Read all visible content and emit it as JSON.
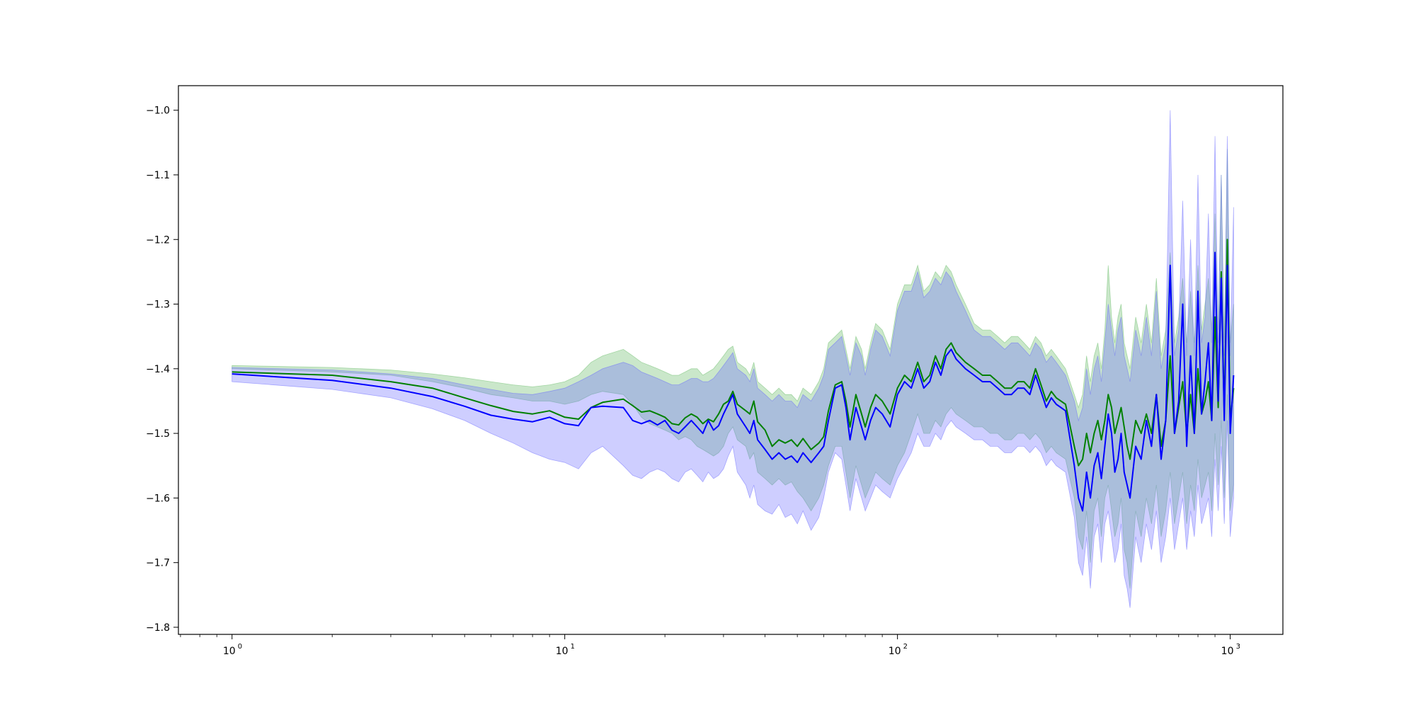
{
  "chart_data": {
    "type": "line",
    "title": "",
    "xlabel": "",
    "ylabel": "",
    "xscale": "log",
    "xlim": [
      0.69,
      1440
    ],
    "ylim": [
      -1.811,
      -0.962
    ],
    "grid": false,
    "x_ticks": [
      {
        "value": 1,
        "base": "10",
        "exp": "0"
      },
      {
        "value": 10,
        "base": "10",
        "exp": "1"
      },
      {
        "value": 100,
        "base": "10",
        "exp": "2"
      },
      {
        "value": 1000,
        "base": "10",
        "exp": "3"
      }
    ],
    "y_ticks": [
      {
        "value": -1.0,
        "label": "−1.0"
      },
      {
        "value": -1.1,
        "label": "−1.1"
      },
      {
        "value": -1.2,
        "label": "−1.2"
      },
      {
        "value": -1.3,
        "label": "−1.3"
      },
      {
        "value": -1.4,
        "label": "−1.4"
      },
      {
        "value": -1.5,
        "label": "−1.5"
      },
      {
        "value": -1.6,
        "label": "−1.6"
      },
      {
        "value": -1.7,
        "label": "−1.7"
      },
      {
        "value": -1.8,
        "label": "−1.8"
      }
    ],
    "series": [
      {
        "color": "#008000",
        "band_color": "#66bb66",
        "band_opacity": 0.35,
        "x": [
          1,
          2,
          3,
          4,
          5,
          6,
          7,
          8,
          9,
          10,
          11,
          12,
          13,
          15,
          16,
          17,
          18,
          19,
          20,
          21,
          22,
          23,
          24,
          25,
          26,
          27,
          28,
          29,
          30,
          31,
          32,
          33,
          35,
          36,
          37,
          38,
          40,
          42,
          44,
          46,
          48,
          50,
          52,
          55,
          58,
          60,
          62,
          65,
          68,
          70,
          72,
          75,
          78,
          80,
          83,
          86,
          90,
          95,
          100,
          105,
          110,
          115,
          120,
          125,
          130,
          135,
          140,
          145,
          150,
          160,
          170,
          180,
          190,
          200,
          210,
          220,
          230,
          240,
          250,
          260,
          270,
          280,
          290,
          300,
          320,
          340,
          350,
          360,
          370,
          380,
          390,
          400,
          410,
          420,
          430,
          440,
          450,
          460,
          470,
          480,
          490,
          500,
          520,
          540,
          560,
          580,
          600,
          620,
          640,
          660,
          680,
          700,
          720,
          740,
          760,
          780,
          800,
          820,
          840,
          860,
          880,
          900,
          920,
          940,
          960,
          980,
          1000,
          1024
        ],
        "y": [
          -1.405,
          -1.41,
          -1.42,
          -1.43,
          -1.445,
          -1.457,
          -1.466,
          -1.47,
          -1.465,
          -1.475,
          -1.478,
          -1.46,
          -1.452,
          -1.447,
          -1.457,
          -1.467,
          -1.465,
          -1.47,
          -1.475,
          -1.485,
          -1.487,
          -1.476,
          -1.47,
          -1.475,
          -1.485,
          -1.478,
          -1.482,
          -1.47,
          -1.455,
          -1.45,
          -1.435,
          -1.455,
          -1.465,
          -1.47,
          -1.45,
          -1.482,
          -1.495,
          -1.52,
          -1.51,
          -1.515,
          -1.51,
          -1.52,
          -1.508,
          -1.525,
          -1.515,
          -1.505,
          -1.465,
          -1.425,
          -1.42,
          -1.45,
          -1.49,
          -1.44,
          -1.47,
          -1.49,
          -1.46,
          -1.44,
          -1.45,
          -1.47,
          -1.43,
          -1.41,
          -1.42,
          -1.39,
          -1.42,
          -1.41,
          -1.38,
          -1.4,
          -1.37,
          -1.36,
          -1.375,
          -1.39,
          -1.4,
          -1.41,
          -1.41,
          -1.42,
          -1.43,
          -1.43,
          -1.42,
          -1.42,
          -1.43,
          -1.4,
          -1.425,
          -1.45,
          -1.435,
          -1.445,
          -1.455,
          -1.52,
          -1.55,
          -1.54,
          -1.5,
          -1.53,
          -1.5,
          -1.48,
          -1.51,
          -1.48,
          -1.44,
          -1.46,
          -1.5,
          -1.48,
          -1.46,
          -1.49,
          -1.52,
          -1.54,
          -1.48,
          -1.5,
          -1.47,
          -1.5,
          -1.44,
          -1.52,
          -1.48,
          -1.38,
          -1.5,
          -1.46,
          -1.42,
          -1.5,
          -1.44,
          -1.5,
          -1.4,
          -1.47,
          -1.45,
          -1.42,
          -1.48,
          -1.32,
          -1.46,
          -1.25,
          -1.47,
          -1.2,
          -1.48,
          -1.43
        ],
        "lower": [
          -1.4,
          -1.405,
          -1.41,
          -1.42,
          -1.43,
          -1.44,
          -1.445,
          -1.45,
          -1.45,
          -1.455,
          -1.45,
          -1.44,
          -1.435,
          -1.44,
          -1.455,
          -1.475,
          -1.485,
          -1.49,
          -1.495,
          -1.5,
          -1.51,
          -1.505,
          -1.51,
          -1.52,
          -1.525,
          -1.53,
          -1.535,
          -1.53,
          -1.52,
          -1.5,
          -1.49,
          -1.51,
          -1.52,
          -1.54,
          -1.53,
          -1.56,
          -1.57,
          -1.58,
          -1.57,
          -1.58,
          -1.575,
          -1.59,
          -1.6,
          -1.62,
          -1.6,
          -1.58,
          -1.55,
          -1.52,
          -1.52,
          -1.56,
          -1.6,
          -1.55,
          -1.58,
          -1.6,
          -1.58,
          -1.56,
          -1.57,
          -1.58,
          -1.55,
          -1.53,
          -1.5,
          -1.47,
          -1.5,
          -1.5,
          -1.48,
          -1.49,
          -1.47,
          -1.46,
          -1.47,
          -1.48,
          -1.49,
          -1.49,
          -1.5,
          -1.5,
          -1.51,
          -1.51,
          -1.5,
          -1.5,
          -1.51,
          -1.5,
          -1.51,
          -1.53,
          -1.52,
          -1.53,
          -1.54,
          -1.6,
          -1.66,
          -1.68,
          -1.62,
          -1.7,
          -1.62,
          -1.6,
          -1.66,
          -1.6,
          -1.58,
          -1.62,
          -1.66,
          -1.64,
          -1.6,
          -1.68,
          -1.7,
          -1.74,
          -1.62,
          -1.66,
          -1.6,
          -1.64,
          -1.58,
          -1.66,
          -1.62,
          -1.56,
          -1.64,
          -1.6,
          -1.56,
          -1.64,
          -1.58,
          -1.62,
          -1.54,
          -1.6,
          -1.58,
          -1.56,
          -1.62,
          -1.5,
          -1.58,
          -1.48,
          -1.6,
          -1.44,
          -1.62,
          -1.58
        ],
        "upper": [
          -1.395,
          -1.398,
          -1.402,
          -1.408,
          -1.414,
          -1.42,
          -1.425,
          -1.428,
          -1.425,
          -1.42,
          -1.41,
          -1.39,
          -1.38,
          -1.37,
          -1.38,
          -1.39,
          -1.395,
          -1.4,
          -1.405,
          -1.41,
          -1.41,
          -1.405,
          -1.4,
          -1.4,
          -1.41,
          -1.405,
          -1.4,
          -1.39,
          -1.38,
          -1.37,
          -1.365,
          -1.39,
          -1.4,
          -1.41,
          -1.39,
          -1.42,
          -1.43,
          -1.44,
          -1.43,
          -1.44,
          -1.44,
          -1.45,
          -1.43,
          -1.44,
          -1.42,
          -1.4,
          -1.36,
          -1.35,
          -1.34,
          -1.37,
          -1.4,
          -1.35,
          -1.37,
          -1.4,
          -1.36,
          -1.33,
          -1.34,
          -1.37,
          -1.3,
          -1.27,
          -1.27,
          -1.24,
          -1.28,
          -1.27,
          -1.25,
          -1.26,
          -1.24,
          -1.25,
          -1.27,
          -1.3,
          -1.33,
          -1.34,
          -1.34,
          -1.35,
          -1.36,
          -1.35,
          -1.35,
          -1.36,
          -1.37,
          -1.35,
          -1.36,
          -1.38,
          -1.37,
          -1.38,
          -1.4,
          -1.44,
          -1.46,
          -1.44,
          -1.38,
          -1.42,
          -1.38,
          -1.36,
          -1.4,
          -1.34,
          -1.24,
          -1.32,
          -1.36,
          -1.32,
          -1.3,
          -1.36,
          -1.38,
          -1.4,
          -1.32,
          -1.36,
          -1.3,
          -1.36,
          -1.26,
          -1.38,
          -1.34,
          -1.22,
          -1.36,
          -1.32,
          -1.26,
          -1.36,
          -1.28,
          -1.36,
          -1.24,
          -1.34,
          -1.3,
          -1.26,
          -1.34,
          -1.16,
          -1.34,
          -1.1,
          -1.36,
          -1.06,
          -1.36,
          -1.3
        ]
      },
      {
        "color": "#0000ff",
        "band_color": "#6666ff",
        "band_opacity": 0.32,
        "x": [
          1,
          2,
          3,
          4,
          5,
          6,
          7,
          8,
          9,
          10,
          11,
          12,
          13,
          15,
          16,
          17,
          18,
          19,
          20,
          21,
          22,
          23,
          24,
          25,
          26,
          27,
          28,
          29,
          30,
          31,
          32,
          33,
          35,
          36,
          37,
          38,
          40,
          42,
          44,
          46,
          48,
          50,
          52,
          55,
          58,
          60,
          62,
          65,
          68,
          70,
          72,
          75,
          78,
          80,
          83,
          86,
          90,
          95,
          100,
          105,
          110,
          115,
          120,
          125,
          130,
          135,
          140,
          145,
          150,
          160,
          170,
          180,
          190,
          200,
          210,
          220,
          230,
          240,
          250,
          260,
          270,
          280,
          290,
          300,
          320,
          340,
          350,
          360,
          370,
          380,
          390,
          400,
          410,
          420,
          430,
          440,
          450,
          460,
          470,
          480,
          490,
          500,
          520,
          540,
          560,
          580,
          600,
          620,
          640,
          660,
          680,
          700,
          720,
          740,
          760,
          780,
          800,
          820,
          840,
          860,
          880,
          900,
          920,
          940,
          960,
          980,
          1000,
          1024
        ],
        "y": [
          -1.408,
          -1.418,
          -1.43,
          -1.443,
          -1.458,
          -1.472,
          -1.478,
          -1.482,
          -1.475,
          -1.485,
          -1.488,
          -1.46,
          -1.458,
          -1.46,
          -1.48,
          -1.485,
          -1.48,
          -1.487,
          -1.48,
          -1.495,
          -1.5,
          -1.49,
          -1.48,
          -1.49,
          -1.5,
          -1.48,
          -1.495,
          -1.488,
          -1.47,
          -1.455,
          -1.44,
          -1.47,
          -1.49,
          -1.5,
          -1.48,
          -1.51,
          -1.525,
          -1.54,
          -1.53,
          -1.54,
          -1.535,
          -1.545,
          -1.53,
          -1.545,
          -1.53,
          -1.52,
          -1.48,
          -1.43,
          -1.425,
          -1.46,
          -1.51,
          -1.46,
          -1.49,
          -1.51,
          -1.48,
          -1.46,
          -1.47,
          -1.49,
          -1.44,
          -1.42,
          -1.43,
          -1.4,
          -1.43,
          -1.42,
          -1.39,
          -1.41,
          -1.38,
          -1.37,
          -1.385,
          -1.4,
          -1.41,
          -1.42,
          -1.42,
          -1.43,
          -1.44,
          -1.44,
          -1.43,
          -1.43,
          -1.44,
          -1.41,
          -1.435,
          -1.46,
          -1.445,
          -1.455,
          -1.465,
          -1.55,
          -1.6,
          -1.62,
          -1.56,
          -1.6,
          -1.55,
          -1.53,
          -1.57,
          -1.52,
          -1.47,
          -1.5,
          -1.56,
          -1.54,
          -1.5,
          -1.56,
          -1.58,
          -1.6,
          -1.52,
          -1.54,
          -1.48,
          -1.52,
          -1.44,
          -1.54,
          -1.48,
          -1.24,
          -1.5,
          -1.45,
          -1.3,
          -1.52,
          -1.38,
          -1.5,
          -1.28,
          -1.47,
          -1.42,
          -1.36,
          -1.48,
          -1.22,
          -1.45,
          -1.26,
          -1.48,
          -1.24,
          -1.5,
          -1.41
        ],
        "lower": [
          -1.42,
          -1.432,
          -1.445,
          -1.462,
          -1.48,
          -1.5,
          -1.515,
          -1.53,
          -1.54,
          -1.545,
          -1.555,
          -1.53,
          -1.52,
          -1.55,
          -1.565,
          -1.57,
          -1.56,
          -1.555,
          -1.56,
          -1.57,
          -1.575,
          -1.56,
          -1.555,
          -1.565,
          -1.575,
          -1.56,
          -1.57,
          -1.565,
          -1.555,
          -1.535,
          -1.52,
          -1.56,
          -1.58,
          -1.6,
          -1.58,
          -1.61,
          -1.62,
          -1.625,
          -1.61,
          -1.63,
          -1.625,
          -1.64,
          -1.62,
          -1.65,
          -1.63,
          -1.6,
          -1.56,
          -1.53,
          -1.54,
          -1.58,
          -1.62,
          -1.57,
          -1.6,
          -1.62,
          -1.6,
          -1.58,
          -1.59,
          -1.6,
          -1.57,
          -1.55,
          -1.53,
          -1.5,
          -1.52,
          -1.52,
          -1.5,
          -1.51,
          -1.49,
          -1.48,
          -1.49,
          -1.5,
          -1.51,
          -1.51,
          -1.52,
          -1.52,
          -1.53,
          -1.53,
          -1.52,
          -1.52,
          -1.53,
          -1.52,
          -1.53,
          -1.55,
          -1.54,
          -1.55,
          -1.56,
          -1.63,
          -1.7,
          -1.72,
          -1.66,
          -1.74,
          -1.66,
          -1.64,
          -1.7,
          -1.64,
          -1.62,
          -1.66,
          -1.7,
          -1.68,
          -1.64,
          -1.72,
          -1.74,
          -1.77,
          -1.66,
          -1.7,
          -1.64,
          -1.68,
          -1.62,
          -1.7,
          -1.66,
          -1.6,
          -1.68,
          -1.64,
          -1.6,
          -1.68,
          -1.62,
          -1.66,
          -1.58,
          -1.64,
          -1.62,
          -1.6,
          -1.66,
          -1.54,
          -1.62,
          -1.52,
          -1.64,
          -1.48,
          -1.66,
          -1.6
        ],
        "upper": [
          -1.398,
          -1.402,
          -1.408,
          -1.415,
          -1.425,
          -1.432,
          -1.438,
          -1.44,
          -1.435,
          -1.43,
          -1.42,
          -1.41,
          -1.4,
          -1.39,
          -1.395,
          -1.405,
          -1.41,
          -1.415,
          -1.42,
          -1.425,
          -1.425,
          -1.42,
          -1.415,
          -1.415,
          -1.42,
          -1.42,
          -1.415,
          -1.405,
          -1.395,
          -1.385,
          -1.375,
          -1.4,
          -1.41,
          -1.42,
          -1.4,
          -1.43,
          -1.44,
          -1.45,
          -1.44,
          -1.45,
          -1.45,
          -1.46,
          -1.44,
          -1.45,
          -1.43,
          -1.41,
          -1.37,
          -1.36,
          -1.35,
          -1.38,
          -1.41,
          -1.36,
          -1.38,
          -1.41,
          -1.37,
          -1.34,
          -1.35,
          -1.38,
          -1.31,
          -1.28,
          -1.28,
          -1.25,
          -1.29,
          -1.28,
          -1.26,
          -1.27,
          -1.25,
          -1.26,
          -1.28,
          -1.31,
          -1.34,
          -1.35,
          -1.35,
          -1.36,
          -1.37,
          -1.36,
          -1.36,
          -1.37,
          -1.38,
          -1.36,
          -1.37,
          -1.39,
          -1.38,
          -1.39,
          -1.41,
          -1.45,
          -1.48,
          -1.46,
          -1.4,
          -1.44,
          -1.4,
          -1.38,
          -1.42,
          -1.36,
          -1.3,
          -1.34,
          -1.38,
          -1.34,
          -1.32,
          -1.38,
          -1.4,
          -1.42,
          -1.34,
          -1.38,
          -1.32,
          -1.38,
          -1.28,
          -1.4,
          -1.36,
          -1.0,
          -1.38,
          -1.34,
          -1.14,
          -1.38,
          -1.2,
          -1.38,
          -1.1,
          -1.36,
          -1.32,
          -1.16,
          -1.36,
          -1.04,
          -1.36,
          -1.1,
          -1.38,
          -1.04,
          -1.38,
          -1.15
        ]
      }
    ]
  }
}
